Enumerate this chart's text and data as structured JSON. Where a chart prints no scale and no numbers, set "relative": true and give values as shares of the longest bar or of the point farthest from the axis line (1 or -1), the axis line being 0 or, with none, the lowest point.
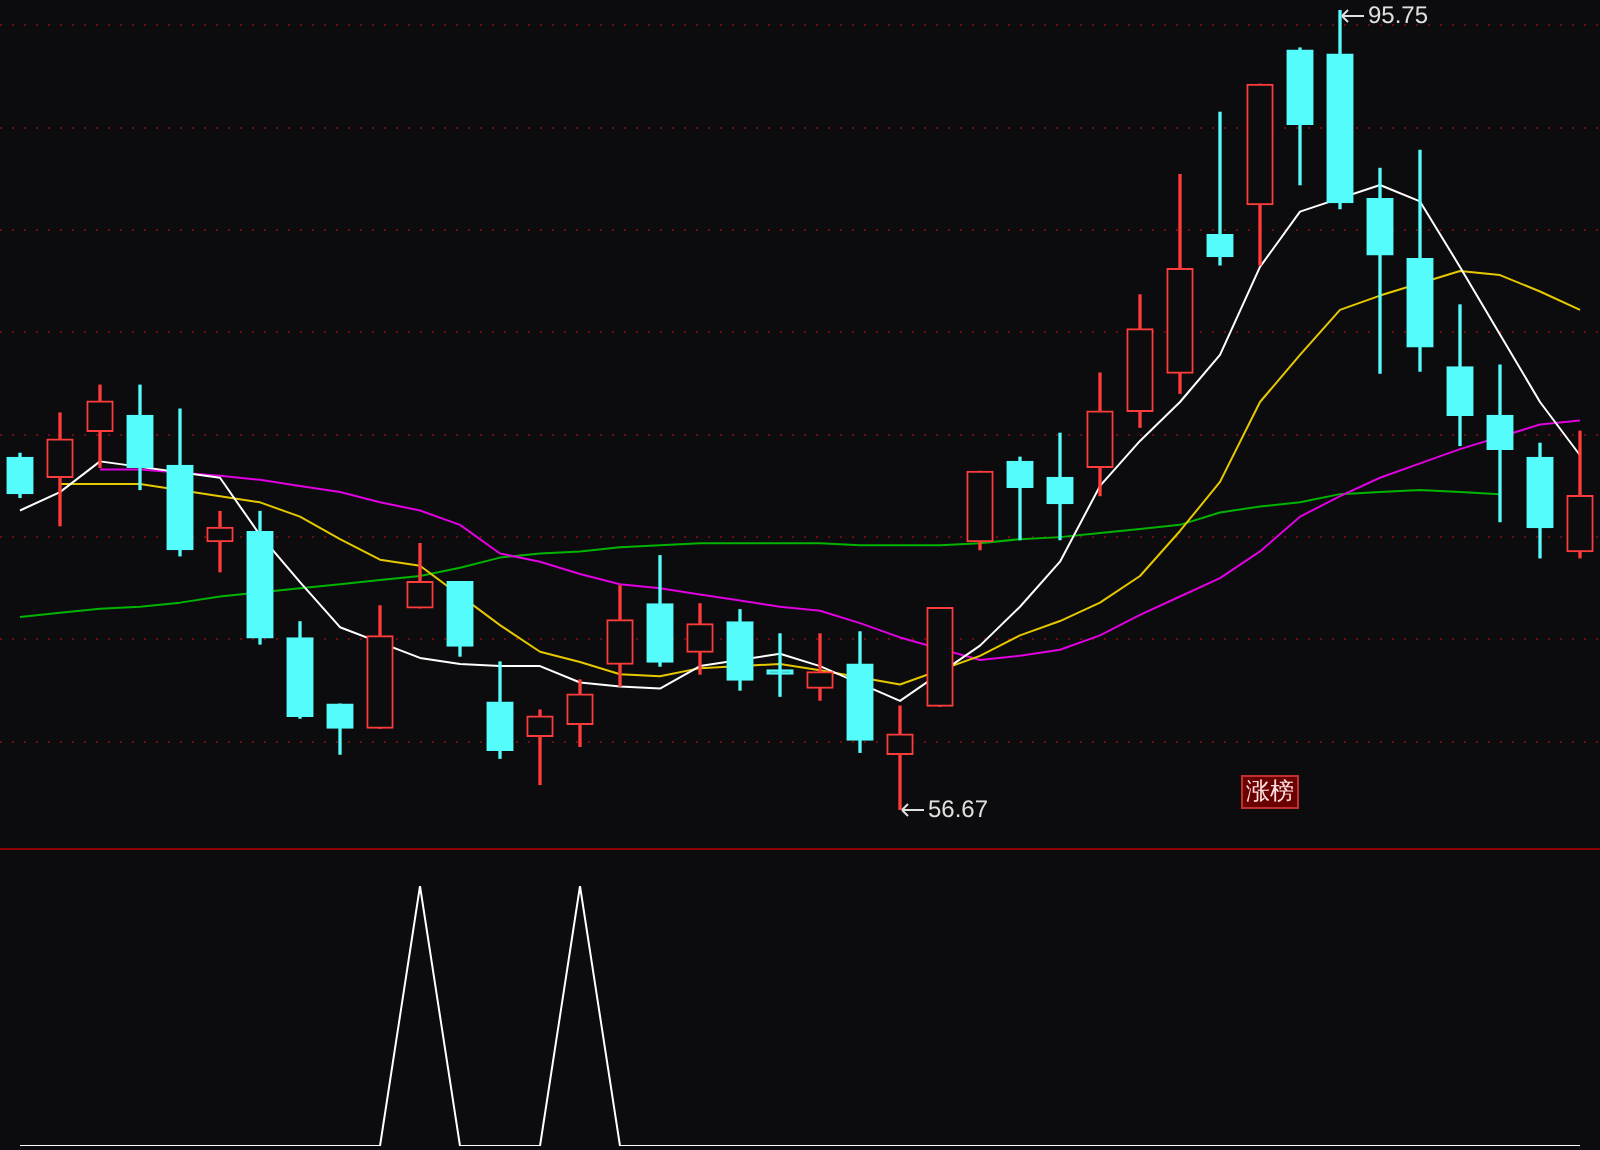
{
  "chart_data": [
    {
      "type": "candlestick",
      "categories": [
        null,
        null,
        null,
        null,
        null,
        null,
        null,
        null,
        null,
        null,
        null,
        null,
        null,
        null,
        null,
        null,
        null,
        null,
        null,
        null,
        null,
        null,
        null,
        null,
        null,
        null,
        null,
        null,
        null,
        null,
        null,
        null,
        null,
        null,
        null,
        null,
        null,
        null,
        null,
        null
      ],
      "ohlc": [
        [
          73.9,
          74.09,
          71.94,
          72.13
        ],
        [
          72.92,
          76.06,
          70.56,
          74.78
        ],
        [
          75.17,
          77.42,
          73.41,
          76.64
        ],
        [
          75.95,
          77.42,
          72.33,
          73.41
        ],
        [
          73.5,
          76.25,
          69.09,
          69.39
        ],
        [
          69.78,
          71.25,
          68.31,
          70.47
        ],
        [
          70.27,
          71.25,
          64.78,
          65.08
        ],
        [
          65.08,
          65.86,
          61.16,
          61.25
        ],
        [
          61.84,
          61.84,
          59.4,
          60.67
        ],
        [
          60.67,
          66.64,
          60.67,
          65.17
        ],
        [
          66.55,
          69.68,
          66.55,
          67.82
        ],
        [
          67.82,
          67.82,
          64.19,
          64.68
        ],
        [
          61.94,
          63.9,
          59.2,
          59.59
        ],
        [
          60.27,
          61.55,
          57.92,
          61.25
        ],
        [
          60.86,
          63.02,
          59.78,
          62.33
        ],
        [
          63.8,
          67.62,
          62.72,
          65.96
        ],
        [
          66.74,
          69.09,
          63.7,
          63.9
        ],
        [
          64.39,
          66.74,
          63.31,
          65.76
        ],
        [
          65.86,
          66.45,
          62.53,
          63.02
        ],
        [
          63.51,
          65.27,
          62.23,
          63.31
        ],
        [
          62.63,
          65.27,
          62.04,
          63.41
        ],
        [
          63.8,
          65.37,
          59.49,
          60.08
        ],
        [
          59.39,
          61.74,
          56.67,
          60.37
        ],
        [
          61.74,
          66.55,
          61.74,
          66.55
        ],
        [
          69.78,
          73.21,
          69.39,
          73.21
        ],
        [
          73.7,
          73.9,
          69.88,
          72.43
        ],
        [
          72.92,
          75.07,
          69.88,
          71.64
        ],
        [
          73.41,
          78.01,
          72.03,
          76.15
        ],
        [
          76.15,
          81.83,
          75.37,
          80.17
        ],
        [
          78.01,
          87.71,
          77.03,
          83.11
        ],
        [
          84.77,
          90.75,
          83.3,
          83.7
        ],
        [
          86.24,
          92.12,
          83.3,
          92.12
        ],
        [
          93.79,
          93.89,
          87.22,
          90.16
        ],
        [
          93.59,
          95.75,
          86.05,
          86.34
        ],
        [
          86.54,
          88.01,
          78.01,
          83.79
        ],
        [
          83.6,
          88.89,
          78.11,
          79.29
        ],
        [
          78.31,
          81.34,
          74.48,
          75.95
        ],
        [
          75.95,
          78.4,
          70.76,
          74.29
        ],
        [
          73.9,
          74.58,
          68.99,
          70.47
        ],
        [
          69.29,
          75.17,
          68.99,
          72.03
        ]
      ],
      "colors": [
        "#54fcfc",
        "#ff3c3c",
        "#ff3c3c",
        "#54fcfc",
        "#54fcfc",
        "#ff3c3c",
        "#54fcfc",
        "#54fcfc",
        "#54fcfc",
        "#ff3c3c",
        "#ff3c3c",
        "#54fcfc",
        "#54fcfc",
        "#ff3c3c",
        "#ff3c3c",
        "#ff3c3c",
        "#54fcfc",
        "#ff3c3c",
        "#54fcfc",
        "#54fcfc",
        "#ff3c3c",
        "#54fcfc",
        "#ff3c3c",
        "#ff3c3c",
        "#ff3c3c",
        "#54fcfc",
        "#54fcfc",
        "#ff3c3c",
        "#ff3c3c",
        "#ff3c3c",
        "#54fcfc",
        "#ff3c3c",
        "#54fcfc",
        "#54fcfc",
        "#54fcfc",
        "#54fcfc",
        "#54fcfc",
        "#54fcfc",
        "#54fcfc",
        "#ff3c3c"
      ],
      "series": [
        {
          "type": "line",
          "color": "#ffffff",
          "values": [
            71.3,
            72.2,
            73.7,
            null,
            null,
            72.9,
            70.1,
            67.8,
            65.6,
            null,
            64.1,
            63.8,
            63.7,
            63.7,
            62.9,
            62.7,
            62.6,
            63.7,
            null,
            64.3,
            63.7,
            null,
            62.0,
            null,
            64.7,
            66.6,
            68.8,
            72.5,
            74.7,
            76.6,
            78.9,
            83.2,
            85.9,
            null,
            87.2,
            86.4,
            83.2,
            79.9,
            76.6,
            74.0
          ]
        },
        {
          "type": "line",
          "color": "#e6c800",
          "values": [
            null,
            72.6,
            72.6,
            72.6,
            null,
            72.0,
            71.7,
            71.0,
            69.9,
            68.9,
            68.6,
            null,
            65.7,
            64.4,
            63.9,
            63.3,
            63.2,
            63.6,
            null,
            63.8,
            63.5,
            null,
            62.8,
            null,
            64.2,
            65.2,
            65.9,
            66.8,
            68.1,
            70.3,
            72.7,
            76.6,
            78.9,
            81.1,
            81.8,
            null,
            83.0,
            82.8,
            82.0,
            81.1
          ]
        },
        {
          "type": "line",
          "color": "#e000e0",
          "values": [
            null,
            null,
            73.3,
            73.3,
            null,
            73.0,
            72.8,
            72.5,
            72.2,
            71.7,
            71.3,
            70.6,
            69.2,
            68.8,
            68.2,
            67.7,
            67.5,
            67.2,
            66.9,
            66.6,
            66.4,
            65.8,
            65.1,
            null,
            64.0,
            64.2,
            64.5,
            65.2,
            66.2,
            67.1,
            68.0,
            69.3,
            71.0,
            72.0,
            72.9,
            73.6,
            74.3,
            null,
            75.5,
            75.7
          ]
        },
        {
          "type": "line",
          "color": "#00b400",
          "values": [
            66.1,
            66.3,
            66.5,
            66.6,
            66.8,
            67.1,
            null,
            67.5,
            67.7,
            67.9,
            68.1,
            68.5,
            69.0,
            69.2,
            69.3,
            69.5,
            69.6,
            69.7,
            69.7,
            69.7,
            69.7,
            69.6,
            69.6,
            69.6,
            69.7,
            69.9,
            70.0,
            70.2,
            70.4,
            70.6,
            71.2,
            71.5,
            71.7,
            72.1,
            72.2,
            72.3,
            72.2,
            72.1,
            null,
            null
          ]
        }
      ],
      "yticks": [
        {
          "value": 60,
          "label": null
        },
        {
          "value": 65,
          "label": null
        },
        {
          "value": 70,
          "label": null
        },
        {
          "value": 75,
          "label": null
        },
        {
          "value": 80,
          "label": null
        },
        {
          "value": 85,
          "label": null
        },
        {
          "value": 90,
          "label": null
        },
        {
          "value": 95,
          "label": null
        }
      ],
      "grid": "y",
      "marker": "none",
      "line_style": "solid",
      "legend": false,
      "annotations": [
        "95.75",
        "56.67",
        "涨榜"
      ]
    },
    {
      "type": "line",
      "relative": true,
      "categories": [
        null,
        null,
        null,
        null,
        null,
        null,
        null,
        null,
        null,
        null,
        null,
        null,
        null,
        null,
        null,
        null,
        null,
        null,
        null,
        null,
        null,
        null,
        null,
        null,
        null,
        null,
        null,
        null,
        null,
        null,
        null,
        null,
        null,
        null,
        null,
        null,
        null,
        null,
        null,
        null
      ],
      "series": [
        {
          "color": "#ffffff",
          "values": [
            0,
            0,
            0,
            0,
            0,
            0,
            0,
            0,
            0,
            0,
            1,
            0,
            0,
            0,
            1,
            0,
            0,
            0,
            0,
            0,
            0,
            0,
            0,
            0,
            0,
            0,
            0,
            0,
            0,
            0,
            0,
            0,
            0,
            0,
            0,
            0,
            0,
            0,
            0,
            0
          ]
        }
      ],
      "marker": "none",
      "line_style": "solid",
      "legend": false
    }
  ]
}
